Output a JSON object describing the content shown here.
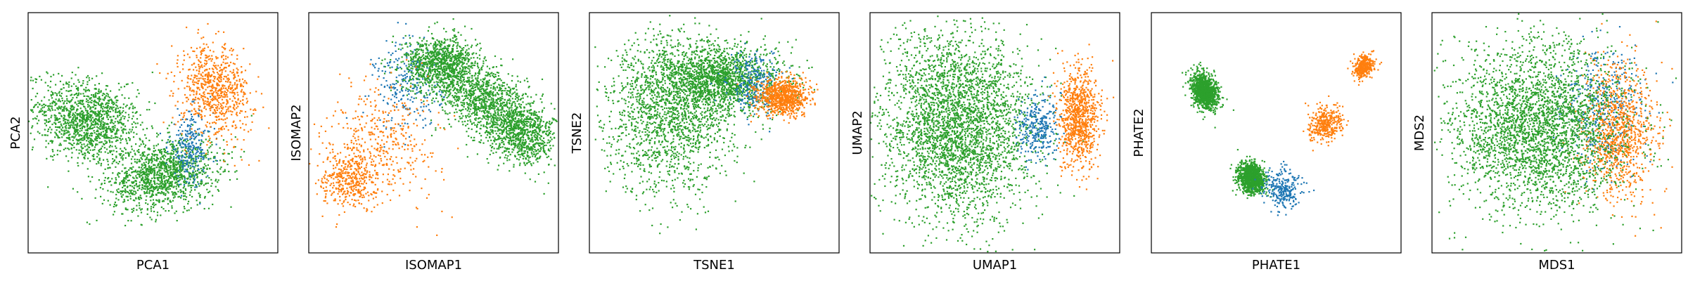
{
  "chart_data": [
    {
      "type": "scatter",
      "xlabel": "PCA1",
      "ylabel": "PCA2",
      "grid": false,
      "ticks": false,
      "legend": "none",
      "xlim": [
        -4,
        4
      ],
      "ylim": [
        -4,
        4
      ],
      "series": [
        {
          "color": "#2ca02c",
          "n": 2600,
          "clusters": [
            [
              -2.1,
              0.4,
              0.85,
              0.65,
              -0.35
            ],
            [
              0.3,
              -1.4,
              0.9,
              0.55,
              0.25
            ]
          ]
        },
        {
          "color": "#1f77b4",
          "n": 260,
          "clusters": [
            [
              1.2,
              -0.5,
              0.35,
              0.6,
              0
            ]
          ]
        },
        {
          "color": "#ff7f0e",
          "n": 750,
          "clusters": [
            [
              2.0,
              1.4,
              0.55,
              0.75,
              0.2
            ]
          ]
        }
      ]
    },
    {
      "type": "scatter",
      "xlabel": "ISOMAP1",
      "ylabel": "ISOMAP2",
      "grid": false,
      "ticks": false,
      "legend": "none",
      "xlim": [
        -4,
        4
      ],
      "ylim": [
        -4,
        4
      ],
      "series": [
        {
          "color": "#1f77b4",
          "n": 260,
          "clusters": [
            [
              -0.8,
              1.6,
              0.55,
              0.75,
              0
            ]
          ]
        },
        {
          "color": "#2ca02c",
          "n": 2800,
          "clusters": [
            [
              0.2,
              2.3,
              0.6,
              0.45,
              0
            ],
            [
              1.5,
              1.2,
              0.8,
              0.55,
              -0.6
            ],
            [
              2.8,
              0.0,
              0.6,
              0.5,
              -0.5
            ]
          ]
        },
        {
          "color": "#ff7f0e",
          "n": 800,
          "clusters": [
            [
              -2.7,
              -1.5,
              0.45,
              0.5,
              0
            ],
            [
              -1.6,
              -0.3,
              0.9,
              1.0,
              0
            ]
          ]
        }
      ]
    },
    {
      "type": "scatter",
      "xlabel": "TSNE1",
      "ylabel": "TSNE2",
      "grid": false,
      "ticks": false,
      "legend": "none",
      "xlim": [
        -4,
        4
      ],
      "ylim": [
        -4,
        4
      ],
      "series": [
        {
          "color": "#2ca02c",
          "n": 3200,
          "clusters": [
            [
              -1.4,
              0.6,
              1.05,
              1.3,
              0
            ],
            [
              0.2,
              1.8,
              1.0,
              0.55,
              0
            ]
          ]
        },
        {
          "color": "#1f77b4",
          "n": 260,
          "clusters": [
            [
              1.3,
              1.6,
              0.4,
              0.5,
              0
            ]
          ]
        },
        {
          "color": "#ff7f0e",
          "n": 850,
          "clusters": [
            [
              2.2,
              1.2,
              0.4,
              0.3,
              0
            ]
          ]
        }
      ]
    },
    {
      "type": "scatter",
      "xlabel": "UMAP1",
      "ylabel": "UMAP2",
      "grid": false,
      "ticks": false,
      "legend": "none",
      "xlim": [
        -4,
        4
      ],
      "ylim": [
        -4,
        4
      ],
      "series": [
        {
          "color": "#2ca02c",
          "n": 3200,
          "clusters": [
            [
              -1.2,
              0.2,
              1.2,
              1.55,
              0
            ]
          ]
        },
        {
          "color": "#1f77b4",
          "n": 300,
          "clusters": [
            [
              1.4,
              0.2,
              0.35,
              0.55,
              0
            ]
          ]
        },
        {
          "color": "#ff7f0e",
          "n": 900,
          "clusters": [
            [
              2.7,
              0.5,
              0.32,
              0.8,
              0
            ]
          ]
        }
      ]
    },
    {
      "type": "scatter",
      "xlabel": "PHATE1",
      "ylabel": "PHATE2",
      "grid": false,
      "ticks": false,
      "legend": "none",
      "xlim": [
        -4,
        4
      ],
      "ylim": [
        -4,
        4
      ],
      "series": [
        {
          "color": "#2ca02c",
          "n": 2400,
          "clusters": [
            [
              -2.3,
              1.4,
              0.3,
              0.2,
              -1.2
            ],
            [
              -0.8,
              -1.5,
              0.25,
              0.2,
              -1.2
            ]
          ]
        },
        {
          "color": "#1f77b4",
          "n": 280,
          "clusters": [
            [
              0.2,
              -1.9,
              0.3,
              0.35,
              0.7
            ]
          ]
        },
        {
          "color": "#ff7f0e",
          "n": 700,
          "clusters": [
            [
              1.6,
              0.3,
              0.3,
              0.25,
              0.95
            ],
            [
              2.8,
              2.2,
              0.2,
              0.15,
              1.05
            ]
          ]
        }
      ]
    },
    {
      "type": "scatter",
      "xlabel": "MDS1",
      "ylabel": "MDS2",
      "grid": false,
      "ticks": false,
      "legend": "none",
      "xlim": [
        -4,
        4
      ],
      "ylim": [
        -4,
        4
      ],
      "series": [
        {
          "color": "#1f77b4",
          "n": 450,
          "clusters": [
            [
              1.5,
              0.8,
              0.6,
              1.0,
              0
            ]
          ]
        },
        {
          "color": "#ff7f0e",
          "n": 950,
          "clusters": [
            [
              2.0,
              0.0,
              0.6,
              1.1,
              0
            ]
          ]
        },
        {
          "color": "#2ca02c",
          "n": 3000,
          "clusters": [
            [
              -0.6,
              0.2,
              1.35,
              1.4,
              0
            ]
          ]
        }
      ]
    }
  ]
}
